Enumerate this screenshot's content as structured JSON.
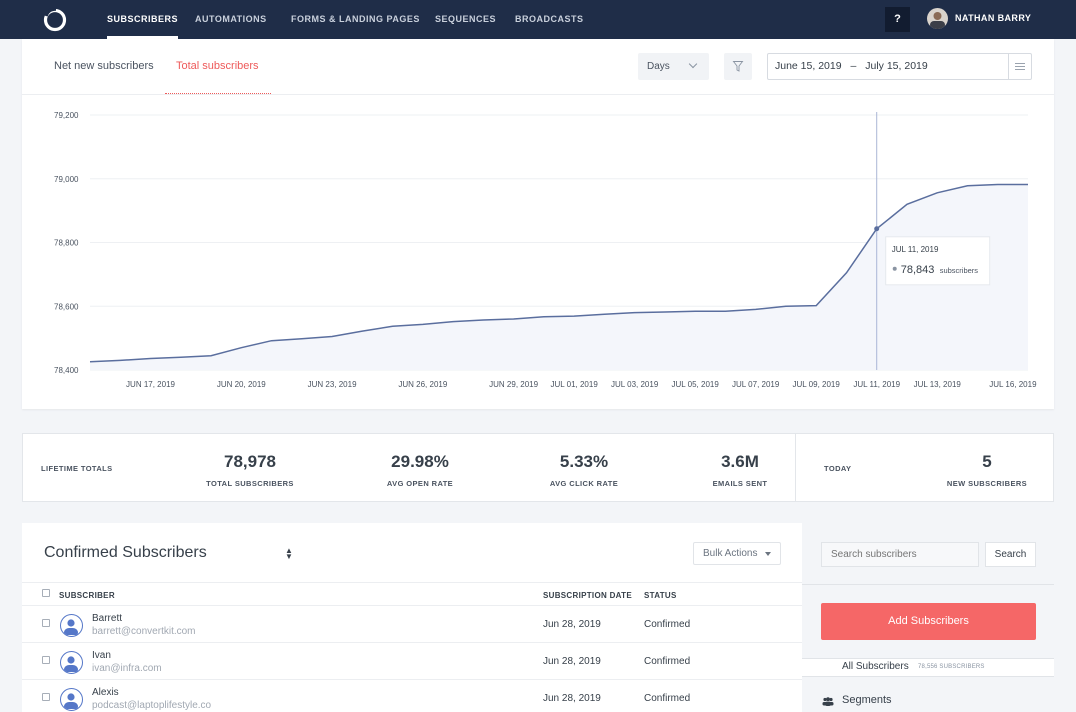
{
  "nav": {
    "items": [
      {
        "label": "SUBSCRIBERS",
        "active": true
      },
      {
        "label": "AUTOMATIONS"
      },
      {
        "label": "FORMS & LANDING PAGES"
      },
      {
        "label": "SEQUENCES"
      },
      {
        "label": "BROADCASTS"
      }
    ],
    "help_label": "?",
    "user_name": "NATHAN BARRY"
  },
  "chart_card": {
    "tabs": [
      {
        "label": "Net new subscribers"
      },
      {
        "label": "Total subscribers",
        "active": true
      }
    ],
    "interval": "Days",
    "date_from": "June 15, 2019",
    "date_sep": "–",
    "date_to": "July 15, 2019"
  },
  "chart_data": {
    "type": "area",
    "title": "",
    "xlabel": "",
    "ylabel": "",
    "ylim": [
      78400,
      79200
    ],
    "yticks": [
      78400,
      78600,
      78800,
      79000,
      79200
    ],
    "ytick_labels": [
      "78,400",
      "78,600",
      "78,800",
      "79,000",
      "79,200"
    ],
    "xtick_labels": [
      "JUN 17, 2019",
      "JUN 20, 2019",
      "JUN 23, 2019",
      "JUN 26, 2019",
      "JUN 29, 2019",
      "JUL 01, 2019",
      "JUL 03, 2019",
      "JUL 05, 2019",
      "JUL 07, 2019",
      "JUL 09, 2019",
      "JUL 11, 2019",
      "JUL 13, 2019",
      "JUL 16, 2019"
    ],
    "x": [
      "Jun 15",
      "Jun 16",
      "Jun 17",
      "Jun 18",
      "Jun 19",
      "Jun 20",
      "Jun 21",
      "Jun 22",
      "Jun 23",
      "Jun 24",
      "Jun 25",
      "Jun 26",
      "Jun 27",
      "Jun 28",
      "Jun 29",
      "Jun 30",
      "Jul 01",
      "Jul 02",
      "Jul 03",
      "Jul 04",
      "Jul 05",
      "Jul 06",
      "Jul 07",
      "Jul 08",
      "Jul 09",
      "Jul 10",
      "Jul 11",
      "Jul 12",
      "Jul 13",
      "Jul 14",
      "Jul 15",
      "Jul 16"
    ],
    "series": [
      {
        "values": [
          78426,
          78430,
          78436,
          78440,
          78445,
          78470,
          78492,
          78498,
          78505,
          78522,
          78537,
          78543,
          78552,
          78557,
          78560,
          78567,
          78569,
          78575,
          78580,
          78582,
          78584,
          78584,
          78590,
          78600,
          78602,
          78705,
          78843,
          78920,
          78956,
          78978,
          78982,
          78982
        ],
        "color": "#5a6e9e",
        "fill": "#f4f6fb"
      }
    ],
    "tooltip": {
      "date": "JUL 11, 2019",
      "value": "78,843",
      "unit": "subscribers",
      "index": 26
    },
    "grid": true
  },
  "stats": {
    "lifetime_label": "LIFETIME TOTALS",
    "total_subscribers": {
      "value": "78,978",
      "label": "TOTAL SUBSCRIBERS"
    },
    "avg_open_rate": {
      "value": "29.98%",
      "label": "AVG OPEN RATE"
    },
    "avg_click_rate": {
      "value": "5.33%",
      "label": "AVG CLICK RATE"
    },
    "emails_sent": {
      "value": "3.6M",
      "label": "EMAILS SENT"
    },
    "today_label": "TODAY",
    "new_subscribers": {
      "value": "5",
      "label": "NEW SUBSCRIBERS"
    }
  },
  "list": {
    "title": "Confirmed Subscribers",
    "bulk_actions": "Bulk Actions",
    "columns": {
      "subscriber": "SUBSCRIBER",
      "date": "SUBSCRIPTION DATE",
      "status": "STATUS"
    },
    "rows": [
      {
        "name": "Barrett",
        "email": "barrett@convertkit.com",
        "date": "Jun 28, 2019",
        "status": "Confirmed"
      },
      {
        "name": "Ivan",
        "email": "ivan@infra.com",
        "date": "Jun 28, 2019",
        "status": "Confirmed"
      },
      {
        "name": "Alexis",
        "email": "podcast@laptoplifestyle.co",
        "date": "Jun 28, 2019",
        "status": "Confirmed"
      }
    ]
  },
  "sidebar": {
    "search_placeholder": "Search subscribers",
    "search_button": "Search",
    "add_button": "Add Subscribers",
    "all_subscribers_label": "All Subscribers",
    "all_subscribers_count": "78,556 SUBSCRIBERS",
    "segments_label": "Segments"
  }
}
